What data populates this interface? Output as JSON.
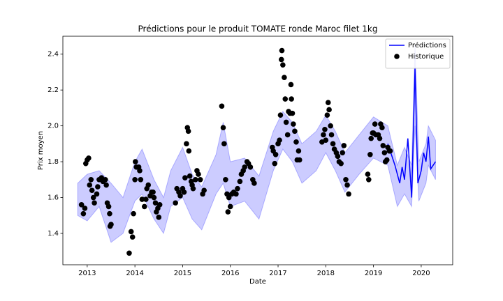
{
  "chart_data": {
    "type": "line",
    "title": "Prédictions pour le produit TOMATE ronde Maroc filet 1kg",
    "x_label": "Date",
    "y_label": "Prix moyen",
    "xlim": [
      2012.49,
      2020.66
    ],
    "ylim": [
      1.225,
      2.5
    ],
    "xticks": [
      2013,
      2014,
      2015,
      2016,
      2017,
      2018,
      2019,
      2020
    ],
    "yticks": [
      1.4,
      1.6,
      1.8,
      {
        "value": 2,
        "label": "2.0"
      },
      2.2,
      2.4
    ],
    "legend": "upper right",
    "band": {
      "color": "#0000ff",
      "x": [
        2012.8,
        2013.0,
        2013.25,
        2013.5,
        2013.75,
        2014.0,
        2014.15,
        2014.4,
        2014.6,
        2014.75,
        2015.0,
        2015.2,
        2015.4,
        2015.7,
        2015.85,
        2016.0,
        2016.3,
        2016.6,
        2016.9,
        2017.1,
        2017.3,
        2017.5,
        2017.8,
        2018.0,
        2018.2,
        2018.4,
        2018.7,
        2019.0,
        2019.3,
        2019.5,
        2019.65,
        2019.8,
        2019.87,
        2019.95,
        2020.1,
        2020.15,
        2020.3
      ],
      "lower": [
        1.5,
        1.47,
        1.55,
        1.35,
        1.4,
        1.58,
        1.62,
        1.48,
        1.4,
        1.55,
        1.6,
        1.48,
        1.42,
        1.62,
        1.68,
        1.55,
        1.58,
        1.48,
        1.75,
        1.87,
        1.8,
        1.68,
        1.75,
        1.85,
        1.75,
        1.63,
        1.73,
        1.82,
        1.78,
        1.55,
        1.62,
        1.55,
        2.0,
        1.58,
        1.68,
        1.78,
        1.7
      ],
      "upper": [
        1.68,
        1.73,
        1.75,
        1.68,
        1.6,
        1.8,
        1.87,
        1.7,
        1.6,
        1.75,
        1.88,
        1.73,
        1.66,
        1.84,
        2.02,
        1.8,
        1.82,
        1.72,
        1.97,
        2.08,
        2.02,
        1.9,
        1.97,
        2.06,
        1.97,
        1.85,
        1.95,
        2.05,
        2.0,
        1.78,
        1.88,
        1.78,
        2.45,
        1.8,
        1.9,
        2.0,
        1.92
      ]
    },
    "series": [
      {
        "name": "Prédictions",
        "type": "line",
        "color": "#0000ff",
        "x": [
          2019.3,
          2019.45,
          2019.55,
          2019.6,
          2019.65,
          2019.72,
          2019.8,
          2019.87,
          2019.93,
          2020.0,
          2020.05,
          2020.1,
          2020.15,
          2020.2,
          2020.3
        ],
        "values": [
          1.9,
          1.78,
          1.68,
          1.77,
          1.7,
          1.93,
          1.6,
          2.32,
          1.68,
          1.75,
          1.85,
          1.8,
          1.94,
          1.76,
          1.8
        ]
      },
      {
        "name": "Historique",
        "type": "scatter",
        "color": "#000000",
        "x": [
          2012.88,
          2012.92,
          2012.95,
          2012.97,
          2013.0,
          2013.03,
          2013.05,
          2013.08,
          2013.1,
          2013.13,
          2013.15,
          2013.2,
          2013.22,
          2013.25,
          2013.3,
          2013.33,
          2013.38,
          2013.4,
          2013.42,
          2013.45,
          2013.47,
          2013.48,
          2013.5,
          2013.88,
          2013.92,
          2013.95,
          2013.97,
          2014.0,
          2014.01,
          2014.03,
          2014.08,
          2014.1,
          2014.12,
          2014.15,
          2014.2,
          2014.23,
          2014.25,
          2014.28,
          2014.32,
          2014.35,
          2014.38,
          2014.4,
          2014.43,
          2014.45,
          2014.48,
          2014.5,
          2014.52,
          2014.85,
          2014.88,
          2014.92,
          2014.95,
          2015.0,
          2015.03,
          2015.05,
          2015.08,
          2015.1,
          2015.12,
          2015.13,
          2015.15,
          2015.18,
          2015.2,
          2015.22,
          2015.27,
          2015.3,
          2015.33,
          2015.37,
          2015.42,
          2015.45,
          2015.82,
          2015.85,
          2015.87,
          2015.9,
          2015.93,
          2015.95,
          2015.97,
          2016.0,
          2016.03,
          2016.07,
          2016.12,
          2016.15,
          2016.2,
          2016.23,
          2016.27,
          2016.3,
          2016.35,
          2016.38,
          2016.42,
          2016.47,
          2016.5,
          2016.88,
          2016.9,
          2016.93,
          2016.95,
          2017.0,
          2017.03,
          2017.05,
          2017.07,
          2017.08,
          2017.1,
          2017.13,
          2017.15,
          2017.17,
          2017.2,
          2017.22,
          2017.25,
          2017.27,
          2017.28,
          2017.3,
          2017.32,
          2017.35,
          2017.38,
          2017.4,
          2017.43,
          2017.45,
          2017.92,
          2017.95,
          2017.98,
          2018.0,
          2018.03,
          2018.05,
          2018.07,
          2018.1,
          2018.12,
          2018.15,
          2018.18,
          2018.22,
          2018.25,
          2018.28,
          2018.32,
          2018.35,
          2018.38,
          2018.42,
          2018.45,
          2018.48,
          2018.88,
          2018.9,
          2018.93,
          2018.95,
          2018.98,
          2019.0,
          2019.03,
          2019.05,
          2019.1,
          2019.13,
          2019.15,
          2019.18,
          2019.2,
          2019.23,
          2019.25,
          2019.28,
          2019.3,
          2019.33,
          2019.35
        ],
        "values": [
          1.56,
          1.51,
          1.54,
          1.79,
          1.81,
          1.82,
          1.67,
          1.7,
          1.64,
          1.6,
          1.57,
          1.62,
          1.66,
          1.7,
          1.71,
          1.69,
          1.7,
          1.67,
          1.57,
          1.55,
          1.51,
          1.44,
          1.45,
          1.29,
          1.41,
          1.38,
          1.51,
          1.7,
          1.8,
          1.77,
          1.77,
          1.75,
          1.7,
          1.59,
          1.55,
          1.59,
          1.65,
          1.67,
          1.61,
          1.63,
          1.63,
          1.6,
          1.57,
          1.52,
          1.54,
          1.49,
          1.56,
          1.57,
          1.65,
          1.63,
          1.61,
          1.65,
          1.63,
          1.71,
          1.9,
          1.99,
          1.97,
          1.86,
          1.72,
          1.69,
          1.67,
          1.65,
          1.7,
          1.75,
          1.73,
          1.7,
          1.62,
          1.64,
          2.11,
          1.99,
          1.9,
          1.7,
          1.62,
          1.52,
          1.6,
          1.55,
          1.62,
          1.63,
          1.62,
          1.65,
          1.69,
          1.73,
          1.75,
          1.77,
          1.8,
          1.79,
          1.77,
          1.7,
          1.68,
          1.88,
          1.86,
          1.79,
          1.84,
          1.9,
          1.92,
          2.06,
          2.37,
          2.42,
          2.34,
          2.27,
          2.15,
          2.02,
          1.95,
          2.08,
          2.07,
          2.23,
          2.15,
          2.07,
          2.01,
          1.97,
          1.91,
          1.81,
          1.86,
          1.81,
          1.91,
          1.95,
          1.98,
          1.92,
          2.06,
          2.13,
          2.09,
          2.0,
          1.95,
          1.9,
          1.87,
          1.85,
          1.83,
          1.8,
          1.79,
          1.85,
          1.89,
          1.7,
          1.67,
          1.62,
          1.73,
          1.7,
          1.84,
          1.93,
          1.96,
          1.96,
          2.01,
          1.95,
          1.95,
          1.93,
          2.01,
          1.99,
          1.89,
          1.85,
          1.8,
          1.81,
          1.88,
          1.86,
          1.86
        ]
      }
    ]
  }
}
